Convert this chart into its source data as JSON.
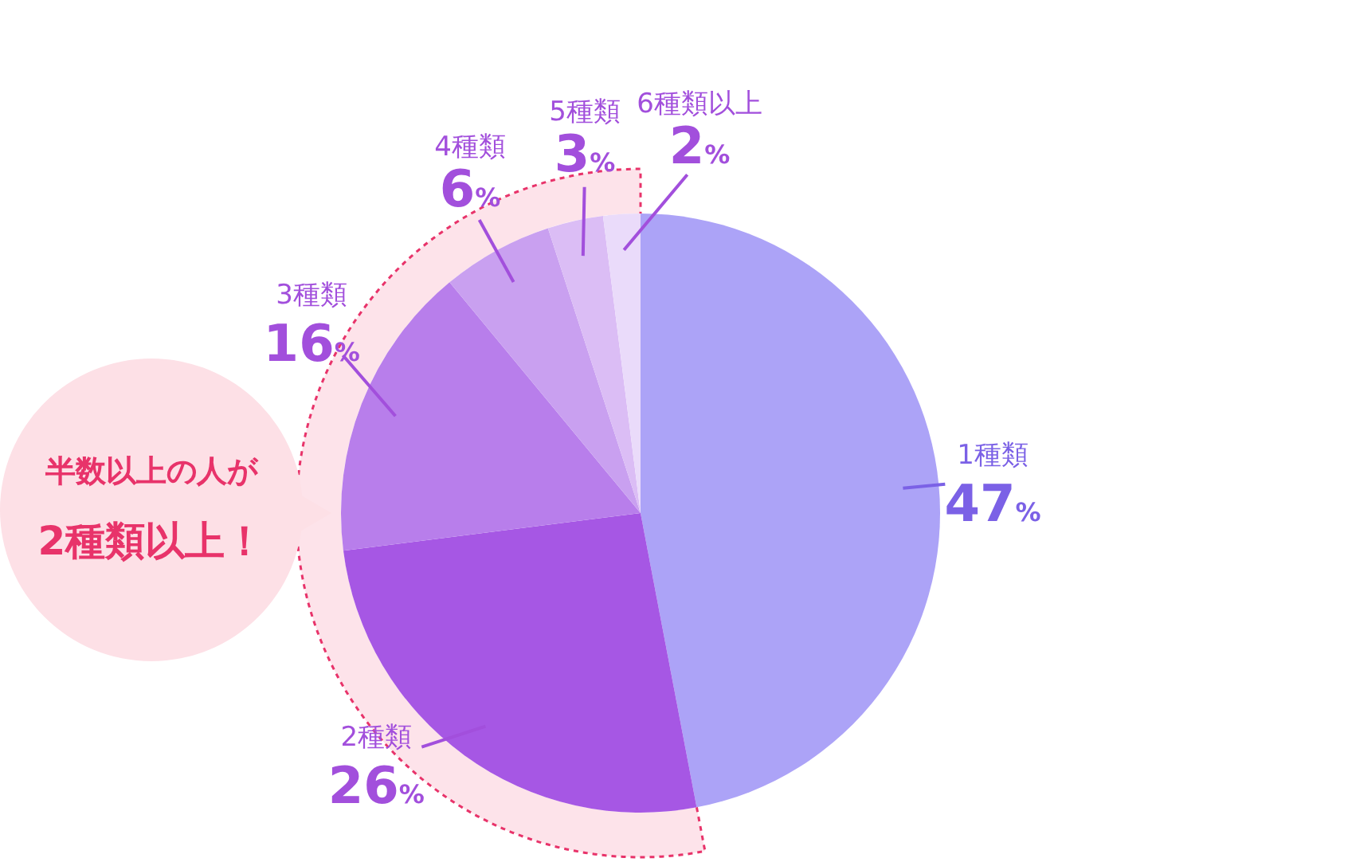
{
  "chart_data": {
    "type": "pie",
    "categories": [
      "1種類",
      "2種類",
      "3種類",
      "4種類",
      "5種類",
      "6種類以上"
    ],
    "values": [
      47,
      26,
      16,
      6,
      3,
      2
    ],
    "colors": [
      "#aca3f7",
      "#a657e4",
      "#b87eeb",
      "#c9a0f0",
      "#dbbdf5",
      "#eadbfa"
    ],
    "value_labels": [
      "47%",
      "26%",
      "16%",
      "6%",
      "3%",
      "2%"
    ],
    "annotations": [
      "半数以上の人が",
      "2種類以上！"
    ]
  }
}
